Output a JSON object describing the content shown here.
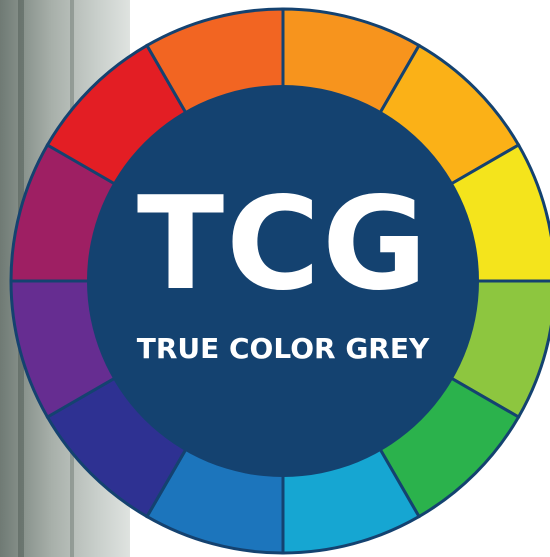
{
  "logo": {
    "title": "TCG",
    "subtitle": "TRUE COLOR GREY"
  }
}
